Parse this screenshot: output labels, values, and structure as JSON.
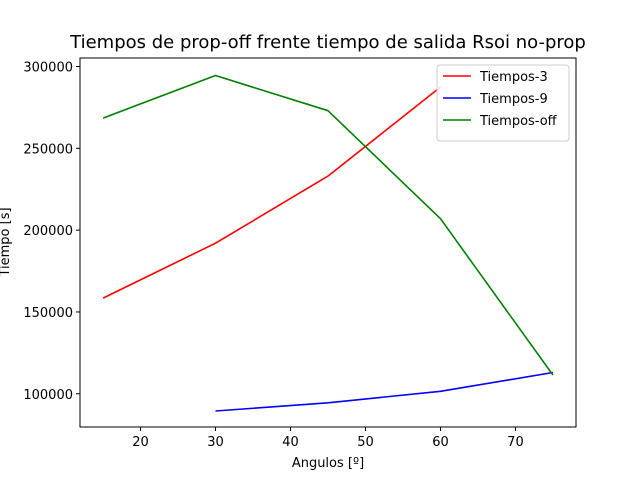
{
  "chart_data": {
    "type": "line",
    "title": "Tiempos de prop-off frente tiempo de salida Rsoi no-prop",
    "xlabel": "Angulos [º]",
    "ylabel": "Tiempo [s]",
    "xlim": [
      11.925,
      78.075
    ],
    "ylim": [
      79700,
      305200
    ],
    "xticks": [
      20,
      30,
      40,
      50,
      60,
      70
    ],
    "yticks": [
      100000,
      150000,
      200000,
      250000,
      300000
    ],
    "grid": false,
    "legend_position": "upper right",
    "series": [
      {
        "name": "Tiempos-3",
        "color": "#ff0000",
        "x": [
          15,
          30,
          45,
          60
        ],
        "y": [
          158500,
          192000,
          233000,
          287500
        ]
      },
      {
        "name": "Tiempos-9",
        "color": "#0000ff",
        "x": [
          30,
          45,
          60,
          75
        ],
        "y": [
          89500,
          94500,
          101500,
          113000
        ]
      },
      {
        "name": "Tiempos-off",
        "color": "#008000",
        "x": [
          15,
          30,
          45,
          60,
          75
        ],
        "y": [
          268500,
          294500,
          273000,
          207000,
          111500
        ]
      }
    ]
  }
}
